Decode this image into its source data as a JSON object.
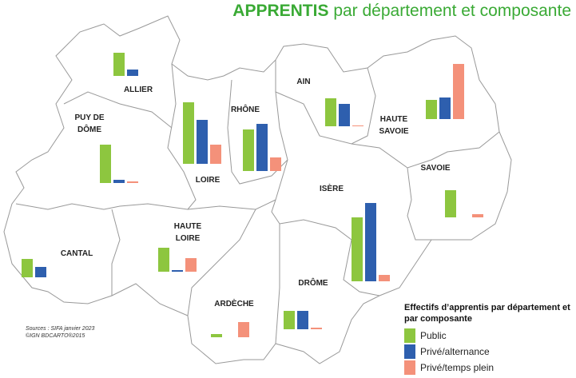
{
  "title": {
    "bold": "APPRENTIS",
    "rest": "par département et composante"
  },
  "series": [
    {
      "name": "Public",
      "color": "#8dc63f"
    },
    {
      "name": "Privé/alternance",
      "color": "#2e5fae"
    },
    {
      "name": "Privé/temps plein",
      "color": "#f4917a"
    }
  ],
  "departments": [
    {
      "lines": [
        "ALLIER"
      ],
      "values": [
        29,
        8,
        0
      ]
    },
    {
      "lines": [
        "PUY DE",
        "DÔME"
      ],
      "values": [
        48,
        4,
        2
      ]
    },
    {
      "lines": [
        "LOIRE"
      ],
      "values": [
        77,
        55,
        24
      ]
    },
    {
      "lines": [
        "RHÔNE"
      ],
      "values": [
        52,
        59,
        17
      ]
    },
    {
      "lines": [
        "AIN"
      ],
      "values": [
        35,
        28,
        1
      ]
    },
    {
      "lines": [
        "HAUTE",
        "SAVOIE"
      ],
      "values": [
        24,
        27,
        69
      ]
    },
    {
      "lines": [
        "SAVOIE"
      ],
      "values": [
        34,
        0,
        4
      ]
    },
    {
      "lines": [
        "ISÈRE"
      ],
      "values": [
        80,
        98,
        8
      ]
    },
    {
      "lines": [
        "CANTAL"
      ],
      "values": [
        23,
        13,
        0
      ]
    },
    {
      "lines": [
        "HAUTE",
        "LOIRE"
      ],
      "values": [
        30,
        2,
        17
      ]
    },
    {
      "lines": [
        "ARDÈCHE"
      ],
      "values": [
        4,
        0,
        19
      ]
    },
    {
      "lines": [
        "DRÔME"
      ],
      "values": [
        23,
        23,
        2
      ]
    }
  ],
  "legend_title": "Effectifs d’apprentis par département et par composante",
  "sources": [
    "Sources : SIFA janvier 2023",
    "©IGN BDCARTO®2015"
  ]
}
